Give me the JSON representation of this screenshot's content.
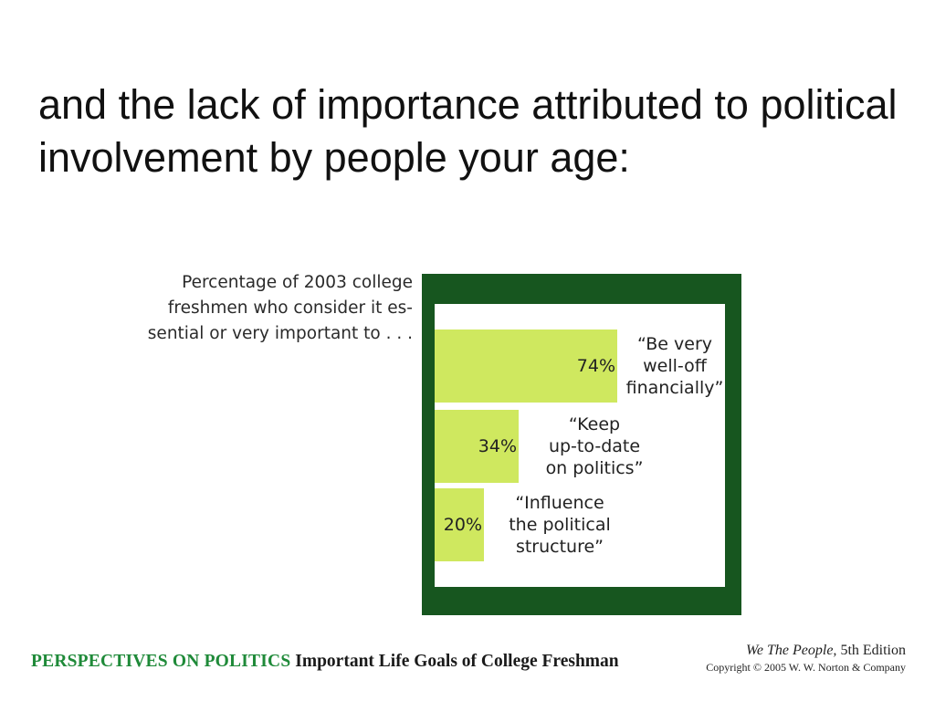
{
  "slide": {
    "title": "and the lack of importance attributed to political involvement by people your age:"
  },
  "chart_caption": "Percentage of 2003 college freshmen who consider it es- sential or very important to . . .",
  "chart_data": {
    "type": "bar",
    "orientation": "horizontal",
    "categories": [
      "“Be very\nwell-off\nfinancially”",
      "“Keep\nup-to-date\non politics”",
      "“Influence\nthe political\nstructure”"
    ],
    "values": [
      74,
      34,
      20
    ],
    "value_labels": [
      "74%",
      "34%",
      "20%"
    ],
    "xlim": [
      0,
      100
    ],
    "grid": false,
    "colors": {
      "bar": "#cfe85f",
      "frame": "#17561f",
      "background": "#ffffff"
    }
  },
  "footer": {
    "series": "PERSPECTIVES ON POLITICS",
    "topic": "Important Life Goals of College Freshman",
    "book_title": "We The People,",
    "book_edition": "5th Edition",
    "copyright": "Copyright © 2005 W. W. Norton & Company"
  }
}
